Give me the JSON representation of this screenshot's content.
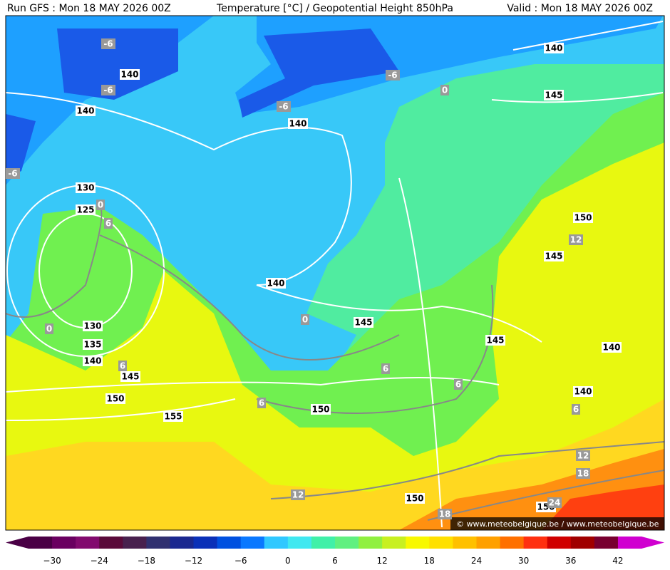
{
  "header": {
    "run": "Run GFS : Mon 18 MAY 2026 00Z",
    "title": "Temperature [°C] / Geopotential Height 850hPa",
    "valid": "Valid : Mon 18 MAY 2026 00Z"
  },
  "map": {
    "height_labels": [
      "140",
      "140",
      "140",
      "140",
      "145",
      "130",
      "125",
      "140",
      "145",
      "130",
      "135",
      "140",
      "145",
      "150",
      "155",
      "150",
      "150",
      "145",
      "145",
      "140",
      "140",
      "150",
      "150"
    ],
    "temperature_labels": [
      "-6",
      "-6",
      "-6",
      "-6",
      "-6",
      "0",
      "0",
      "0",
      "0",
      "6",
      "6",
      "6",
      "6",
      "6",
      "6",
      "12",
      "12",
      "12",
      "18",
      "18",
      "24"
    ],
    "credit": "© www.meteobelgique.be / www.meteobelgique.be"
  },
  "colorbar": {
    "colors": [
      "#4a0045",
      "#6a0060",
      "#820a6e",
      "#5a0a3a",
      "#48204e",
      "#303070",
      "#1a2890",
      "#0a30b8",
      "#0050e0",
      "#0a78ff",
      "#30c8ff",
      "#40e8f0",
      "#40f0a8",
      "#60f080",
      "#90f040",
      "#c8f020",
      "#f8f800",
      "#ffe000",
      "#ffc000",
      "#ffa000",
      "#ff7000",
      "#ff3010",
      "#d00000",
      "#a00000",
      "#780030",
      "#d000d0"
    ],
    "labels": [
      "−30",
      "−24",
      "−18",
      "−12",
      "−6",
      "0",
      "6",
      "12",
      "18",
      "24",
      "30",
      "36",
      "42"
    ]
  }
}
